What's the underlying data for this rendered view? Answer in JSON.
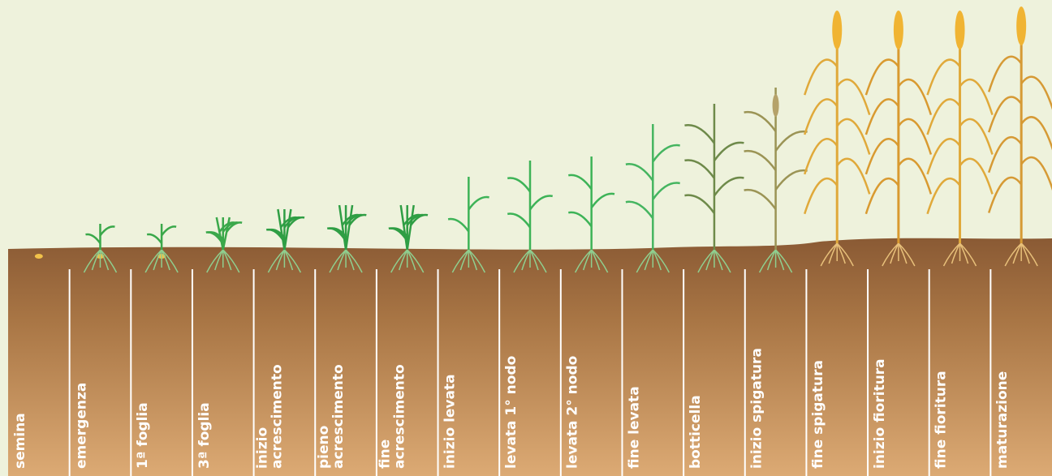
{
  "stages": [
    {
      "lines": [
        "semina"
      ]
    },
    {
      "lines": [
        "emergenza"
      ]
    },
    {
      "lines": [
        "1ª foglia"
      ]
    },
    {
      "lines": [
        "3ª foglia"
      ]
    },
    {
      "lines": [
        "inizio",
        "acrescimento"
      ]
    },
    {
      "lines": [
        "pieno",
        "acrescimento"
      ]
    },
    {
      "lines": [
        "fine",
        "acrescimento"
      ]
    },
    {
      "lines": [
        "inizio levata"
      ]
    },
    {
      "lines": [
        "levata 1° nodo"
      ]
    },
    {
      "lines": [
        "levata 2° nodo"
      ]
    },
    {
      "lines": [
        "fine levata"
      ]
    },
    {
      "lines": [
        "botticella"
      ]
    },
    {
      "lines": [
        "inizio spigatura"
      ]
    },
    {
      "lines": [
        "fine spigatura"
      ]
    },
    {
      "lines": [
        "inizio fioritura"
      ]
    },
    {
      "lines": [
        "fine fioritura"
      ]
    },
    {
      "lines": [
        "maturazione"
      ]
    }
  ]
}
